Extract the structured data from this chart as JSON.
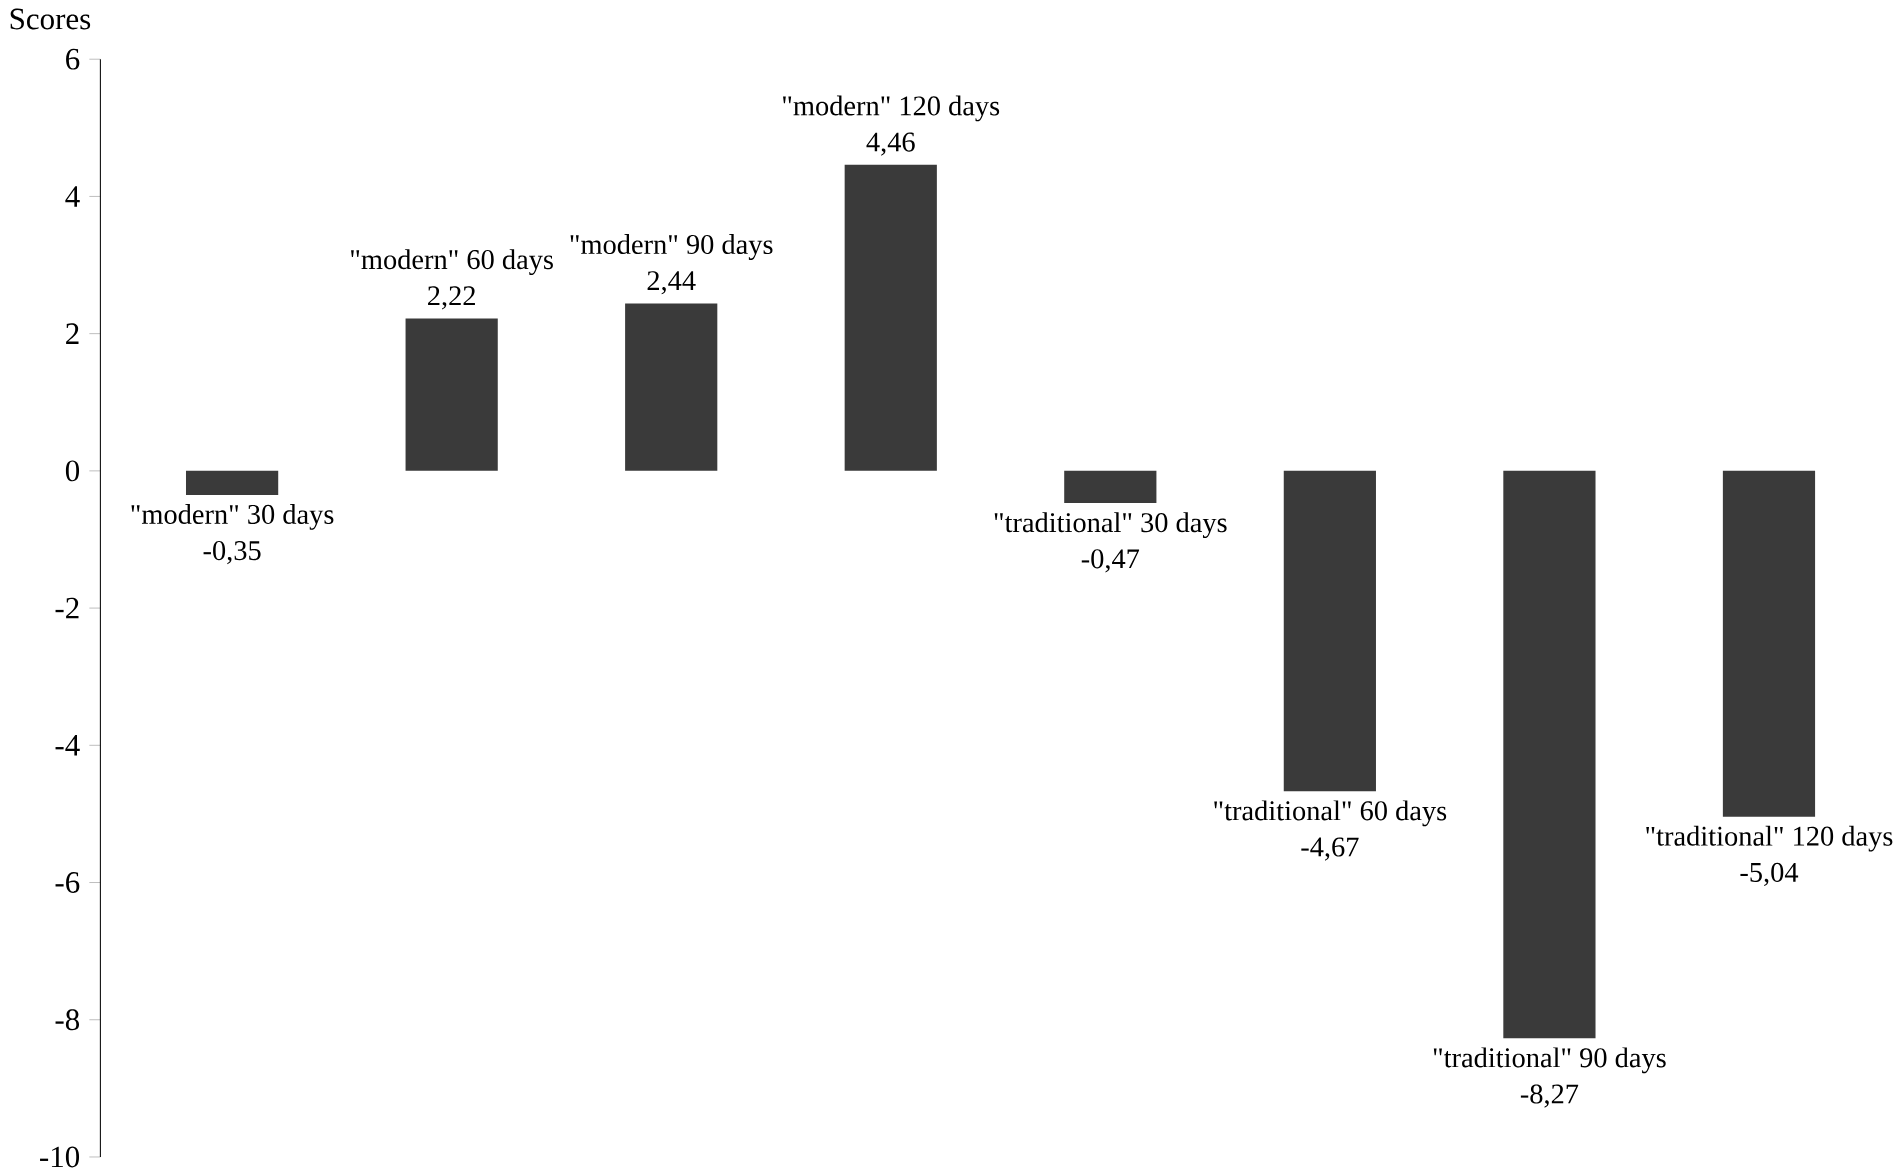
{
  "chart_data": {
    "type": "bar",
    "ylabel": "Scores",
    "categories": [
      "\"modern\" 30 days",
      "\"modern\" 60 days",
      "\"modern\" 90 days",
      "\"modern\" 120 days",
      "\"traditional\" 30 days",
      "\"traditional\" 60 days",
      "\"traditional\" 90 days",
      "\"traditional\" 120 days"
    ],
    "values": [
      -0.35,
      2.22,
      2.44,
      4.46,
      -0.47,
      -4.67,
      -8.27,
      -5.04
    ],
    "value_labels": [
      "-0,35",
      "2,22",
      "2,44",
      "4,46",
      "-0,47",
      "-4,67",
      "-8,27",
      "-5,04"
    ],
    "color": "#3a3a3a",
    "ylim": [
      -10,
      6
    ],
    "yticks": [
      -10,
      -8,
      -6,
      -4,
      -2,
      0,
      2,
      4,
      6
    ],
    "grid": false
  }
}
